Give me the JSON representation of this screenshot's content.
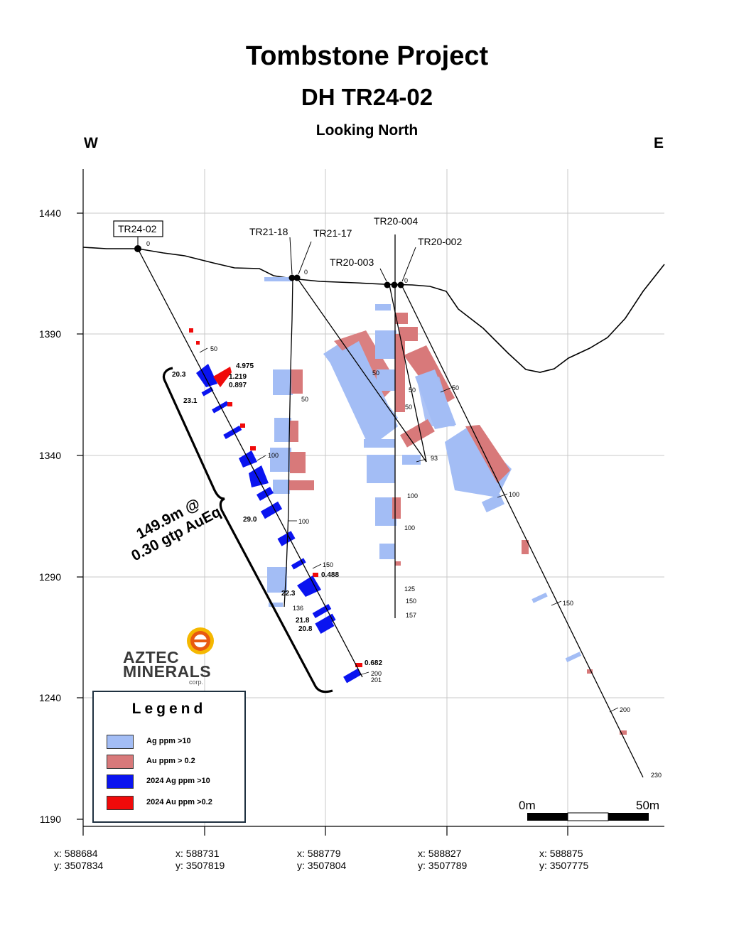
{
  "title": "Tombstone Project",
  "subtitle": "DH TR24-02",
  "view": "Looking North",
  "west_label": "W",
  "east_label": "E",
  "elevation_axis": {
    "ticks": [
      "1440",
      "1390",
      "1340",
      "1290",
      "1240",
      "1190"
    ]
  },
  "coordinates": [
    {
      "x": "x: 588684",
      "y": "y: 3507834"
    },
    {
      "x": "x: 588731",
      "y": "y: 3507819"
    },
    {
      "x": "x: 588779",
      "y": "y: 3507804"
    },
    {
      "x": "x: 588827",
      "y": "y: 3507789"
    },
    {
      "x": "x: 588875",
      "y": "y: 3507775"
    }
  ],
  "holes": {
    "tr24_02": "TR24-02",
    "tr21_18": "TR21-18",
    "tr21_17": "TR21-17",
    "tr20_004": "TR20-004",
    "tr20_003": "TR20-003",
    "tr20_002": "TR20-002"
  },
  "depth_labels": {
    "d0": "0",
    "d50": "50",
    "d100": "100",
    "d150": "150",
    "d200": "200",
    "d201": "201",
    "d93": "93",
    "d125": "125",
    "d136": "136",
    "d157": "157",
    "d230": "230"
  },
  "assays": {
    "a1": "4.975",
    "a2": "1.219",
    "a3": "0.897",
    "a4": "0.488",
    "a5": "0.682",
    "a6": "20.3",
    "a7": "23.1",
    "a8": "29.0",
    "a9": "22.3",
    "a10": "21.8",
    "a11": "20.8"
  },
  "intercept": {
    "line1": "149.9m @",
    "line2": "0.30 gtp AuEq"
  },
  "legend": {
    "title": "Legend",
    "items": [
      {
        "label": "Ag ppm >10",
        "color": "#a3bdf5"
      },
      {
        "label": "Au ppm > 0.2",
        "color": "#d8797a"
      },
      {
        "label": "2024 Ag ppm >10",
        "color": "#0a14f0"
      },
      {
        "label": "2024 Au ppm >0.2",
        "color": "#f00a0a"
      }
    ]
  },
  "scale_bar": {
    "start": "0m",
    "end": "50m"
  },
  "logo": {
    "line1": "AZTEC",
    "line2": "MINERALS",
    "corp": "corp."
  },
  "colors": {
    "ag": "#a3bdf5",
    "au": "#d8797a",
    "ag2024": "#0a14f0",
    "au2024": "#f00a0a"
  }
}
